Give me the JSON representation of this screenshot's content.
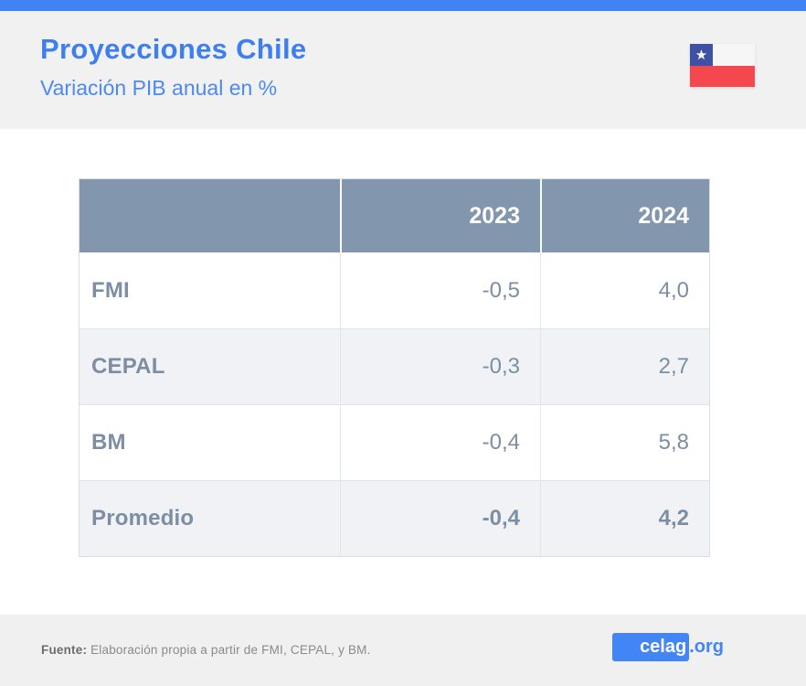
{
  "header": {
    "title": "Proyecciones Chile",
    "subtitle": "Variación PIB anual en %",
    "flag": "chile-flag",
    "flag_star": "★"
  },
  "table": {
    "col_2023": "2023",
    "col_2024": "2024",
    "rows": [
      {
        "label": "FMI",
        "y2023": "-0,5",
        "y2024": "4,0"
      },
      {
        "label": "CEPAL",
        "y2023": "-0,3",
        "y2024": "2,7"
      },
      {
        "label": "BM",
        "y2023": "-0,4",
        "y2024": "5,8"
      },
      {
        "label": "Promedio",
        "y2023": "-0,4",
        "y2024": "4,2"
      }
    ]
  },
  "footer": {
    "source_label": "Fuente:",
    "source_text": " Elaboración propia a partir de FMI, CEPAL, y BM.",
    "logo_main": "celag",
    "logo_suffix": ".org"
  },
  "colors": {
    "accent_blue": "#4183f2",
    "title_blue": "#3d7ef0",
    "table_header_bg": "#8297ae",
    "table_text": "#7d8ea4",
    "row_alt_bg": "#f0f2f6",
    "flag_blue": "#3e51a3",
    "flag_red": "#f4484e",
    "footer_bg": "#f0f0f1",
    "logo_blue": "#4285f4"
  },
  "chart_data": {
    "type": "table",
    "title": "Proyecciones Chile",
    "subtitle": "Variación PIB anual en %",
    "columns": [
      "",
      "2023",
      "2024"
    ],
    "categories": [
      "FMI",
      "CEPAL",
      "BM",
      "Promedio"
    ],
    "series": [
      {
        "name": "2023",
        "values": [
          -0.5,
          -0.3,
          -0.4,
          -0.4
        ]
      },
      {
        "name": "2024",
        "values": [
          4.0,
          2.7,
          5.8,
          4.2
        ]
      }
    ]
  }
}
